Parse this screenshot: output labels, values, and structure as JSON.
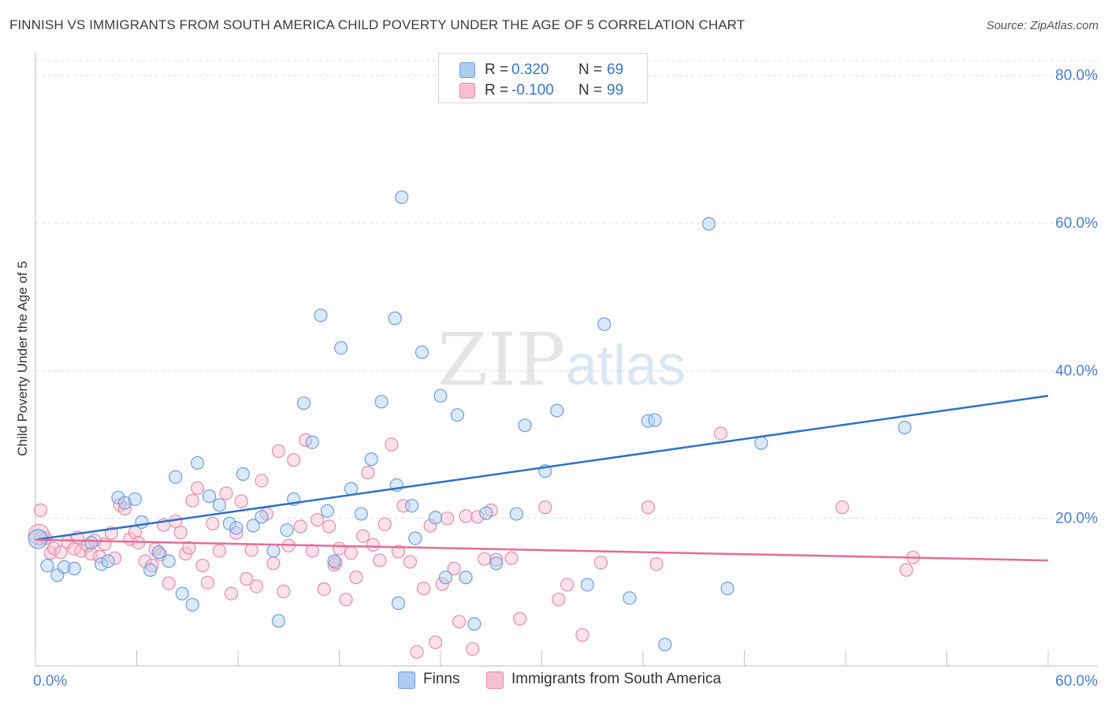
{
  "header": {
    "title": "FINNISH VS IMMIGRANTS FROM SOUTH AMERICA CHILD POVERTY UNDER THE AGE OF 5 CORRELATION CHART",
    "source": "Source: ZipAtlas.com"
  },
  "watermark": {
    "zip": "ZIP",
    "atlas": "atlas"
  },
  "stats": {
    "finns": {
      "r_label": "R =",
      "r_value": "0.320",
      "n_label": "N =",
      "n_value": "69"
    },
    "immigrants": {
      "r_label": "R =",
      "r_value": "-0.100",
      "n_label": "N =",
      "n_value": "99"
    }
  },
  "legend": {
    "finns": "Finns",
    "immigrants": "Immigrants from South America"
  },
  "colors": {
    "finns_fill": "#aecbf0",
    "finns_stroke": "#6a9fe0",
    "finns_line": "#2f6fce",
    "imm_fill": "#f7bfd0",
    "imm_stroke": "#e98aa9",
    "imm_line": "#e56b97",
    "tick_label": "#4a7fd1",
    "grid": "#dedede"
  },
  "chart_data": {
    "type": "scatter",
    "title": "FINNISH VS IMMIGRANTS FROM SOUTH AMERICA CHILD POVERTY UNDER THE AGE OF 5 CORRELATION CHART",
    "xlabel": "",
    "ylabel": "Child Poverty Under the Age of 5",
    "xlim": [
      0,
      60
    ],
    "ylim": [
      0,
      82
    ],
    "x_tick_labels": [
      "0.0%",
      "60.0%"
    ],
    "y_ticks": [
      20,
      40,
      60,
      80
    ],
    "y_tick_labels": [
      "20.0%",
      "40.0%",
      "60.0%",
      "80.0%"
    ],
    "series": [
      {
        "name": "Finns",
        "regression": {
          "x": [
            0,
            60
          ],
          "y": [
            17.1,
            36.6
          ]
        },
        "points": [
          [
            0.3,
            17.3
          ],
          [
            0.7,
            13.6
          ],
          [
            1.3,
            12.3
          ],
          [
            1.7,
            13.4
          ],
          [
            2.3,
            13.2
          ],
          [
            3.3,
            16.7
          ],
          [
            3.9,
            13.8
          ],
          [
            4.3,
            14.2
          ],
          [
            4.9,
            22.8
          ],
          [
            5.3,
            22.1
          ],
          [
            5.9,
            22.6
          ],
          [
            6.3,
            19.5
          ],
          [
            6.8,
            13.0
          ],
          [
            7.3,
            15.4
          ],
          [
            7.9,
            14.2
          ],
          [
            8.3,
            25.6
          ],
          [
            8.7,
            9.8
          ],
          [
            9.3,
            8.3
          ],
          [
            9.6,
            27.5
          ],
          [
            10.3,
            23.0
          ],
          [
            10.9,
            21.8
          ],
          [
            11.5,
            19.3
          ],
          [
            11.9,
            18.7
          ],
          [
            12.3,
            26.0
          ],
          [
            12.9,
            19.0
          ],
          [
            13.4,
            20.2
          ],
          [
            14.1,
            15.6
          ],
          [
            14.9,
            18.4
          ],
          [
            15.3,
            22.6
          ],
          [
            15.9,
            35.6
          ],
          [
            16.4,
            30.3
          ],
          [
            16.9,
            47.5
          ],
          [
            17.3,
            21.0
          ],
          [
            17.7,
            14.2
          ],
          [
            18.1,
            43.1
          ],
          [
            18.7,
            24.0
          ],
          [
            19.3,
            20.6
          ],
          [
            19.9,
            28.0
          ],
          [
            20.5,
            35.8
          ],
          [
            21.3,
            47.1
          ],
          [
            21.5,
            8.5
          ],
          [
            22.3,
            21.7
          ],
          [
            22.5,
            17.3
          ],
          [
            22.9,
            42.5
          ],
          [
            23.7,
            20.1
          ],
          [
            24.0,
            36.6
          ],
          [
            24.3,
            12.0
          ],
          [
            25.0,
            34.0
          ],
          [
            25.5,
            12.0
          ],
          [
            26.0,
            5.7
          ],
          [
            26.7,
            20.7
          ],
          [
            27.3,
            13.9
          ],
          [
            28.5,
            20.6
          ],
          [
            29.0,
            32.6
          ],
          [
            30.2,
            26.4
          ],
          [
            30.9,
            34.6
          ],
          [
            32.7,
            11.0
          ],
          [
            33.7,
            46.3
          ],
          [
            35.2,
            9.2
          ],
          [
            36.3,
            33.2
          ],
          [
            36.7,
            33.3
          ],
          [
            37.3,
            2.9
          ],
          [
            39.9,
            59.9
          ],
          [
            41.0,
            10.5
          ],
          [
            43.0,
            30.2
          ],
          [
            21.7,
            63.5
          ],
          [
            14.4,
            6.1
          ],
          [
            21.4,
            24.5
          ],
          [
            51.5,
            32.3
          ]
        ]
      },
      {
        "name": "Immigrants from South America",
        "regression": {
          "x": [
            0,
            60
          ],
          "y": [
            17.1,
            14.3
          ]
        },
        "points": [
          [
            0.3,
            21.1
          ],
          [
            0.6,
            17.3
          ],
          [
            0.9,
            15.3
          ],
          [
            1.1,
            15.9
          ],
          [
            1.5,
            15.4
          ],
          [
            1.9,
            16.8
          ],
          [
            2.3,
            15.9
          ],
          [
            2.5,
            17.4
          ],
          [
            2.7,
            15.6
          ],
          [
            3.1,
            16.3
          ],
          [
            3.3,
            15.2
          ],
          [
            3.5,
            17.0
          ],
          [
            3.8,
            14.8
          ],
          [
            4.1,
            16.5
          ],
          [
            4.5,
            18.0
          ],
          [
            4.7,
            14.6
          ],
          [
            5.0,
            21.8
          ],
          [
            5.3,
            21.3
          ],
          [
            5.6,
            17.2
          ],
          [
            5.9,
            18.1
          ],
          [
            6.1,
            16.7
          ],
          [
            6.5,
            14.2
          ],
          [
            6.9,
            13.6
          ],
          [
            7.1,
            15.8
          ],
          [
            7.4,
            15.1
          ],
          [
            7.6,
            19.1
          ],
          [
            7.9,
            11.2
          ],
          [
            8.3,
            19.6
          ],
          [
            8.6,
            18.1
          ],
          [
            8.9,
            15.2
          ],
          [
            9.1,
            16.0
          ],
          [
            9.3,
            22.4
          ],
          [
            9.6,
            24.1
          ],
          [
            9.9,
            13.6
          ],
          [
            10.2,
            11.3
          ],
          [
            10.5,
            19.3
          ],
          [
            10.9,
            15.6
          ],
          [
            11.3,
            23.4
          ],
          [
            11.6,
            9.8
          ],
          [
            11.9,
            18.0
          ],
          [
            12.2,
            22.3
          ],
          [
            12.5,
            11.8
          ],
          [
            12.8,
            15.7
          ],
          [
            13.1,
            10.8
          ],
          [
            13.4,
            25.1
          ],
          [
            13.7,
            20.6
          ],
          [
            14.1,
            13.9
          ],
          [
            14.4,
            29.1
          ],
          [
            14.7,
            10.1
          ],
          [
            15.0,
            16.3
          ],
          [
            15.3,
            27.9
          ],
          [
            15.7,
            18.9
          ],
          [
            16.0,
            30.6
          ],
          [
            16.4,
            15.6
          ],
          [
            16.7,
            19.8
          ],
          [
            17.1,
            10.4
          ],
          [
            17.4,
            18.9
          ],
          [
            17.7,
            13.7
          ],
          [
            18.0,
            15.9
          ],
          [
            18.4,
            9.0
          ],
          [
            18.7,
            15.3
          ],
          [
            19.0,
            12.0
          ],
          [
            19.4,
            17.6
          ],
          [
            19.7,
            26.2
          ],
          [
            20.0,
            16.4
          ],
          [
            20.4,
            14.3
          ],
          [
            20.7,
            19.2
          ],
          [
            21.1,
            30.0
          ],
          [
            21.5,
            15.5
          ],
          [
            21.8,
            21.7
          ],
          [
            22.2,
            14.1
          ],
          [
            22.6,
            1.9
          ],
          [
            23.0,
            10.5
          ],
          [
            23.4,
            19.0
          ],
          [
            23.7,
            3.2
          ],
          [
            24.1,
            11.1
          ],
          [
            24.4,
            20.0
          ],
          [
            24.8,
            13.2
          ],
          [
            25.1,
            6.0
          ],
          [
            25.5,
            20.3
          ],
          [
            25.9,
            2.3
          ],
          [
            26.2,
            20.2
          ],
          [
            26.6,
            14.5
          ],
          [
            27.0,
            21.1
          ],
          [
            27.3,
            14.4
          ],
          [
            28.2,
            14.6
          ],
          [
            28.7,
            6.4
          ],
          [
            30.2,
            21.5
          ],
          [
            31.0,
            9.0
          ],
          [
            31.5,
            11.0
          ],
          [
            32.4,
            4.2
          ],
          [
            33.5,
            14.0
          ],
          [
            36.3,
            21.5
          ],
          [
            40.6,
            31.5
          ],
          [
            51.6,
            13.0
          ],
          [
            52.0,
            14.7
          ],
          [
            47.8,
            21.5
          ],
          [
            36.8,
            13.8
          ],
          [
            17.8,
            14.0
          ]
        ]
      }
    ]
  }
}
